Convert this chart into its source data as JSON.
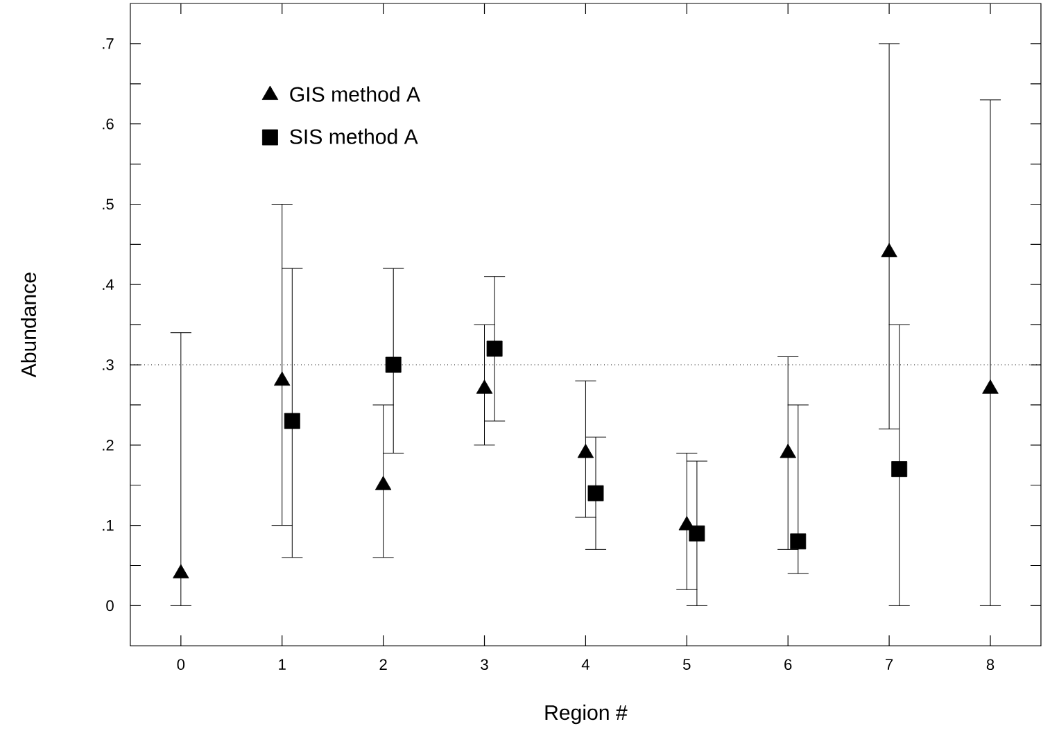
{
  "chart_data": {
    "type": "scatter",
    "xlabel": "Region #",
    "ylabel": "Abundance",
    "xlim": [
      -0.5,
      8.5
    ],
    "ylim": [
      -0.05,
      0.75
    ],
    "xticks": [
      0,
      1,
      2,
      3,
      4,
      5,
      6,
      7,
      8
    ],
    "yticks": [
      0,
      {
        "value": 0.1,
        "label": ".1"
      },
      {
        "value": 0.2,
        "label": ".2"
      },
      {
        "value": 0.3,
        "label": ".3"
      },
      {
        "value": 0.4,
        "label": ".4"
      },
      {
        "value": 0.5,
        "label": ".5"
      },
      {
        "value": 0.6,
        "label": ".6"
      },
      {
        "value": 0.7,
        "label": ".7"
      },
      {
        "value": 0.05,
        "label": null
      },
      {
        "value": 0.15,
        "label": null
      },
      {
        "value": 0.25,
        "label": null
      },
      {
        "value": 0.35,
        "label": null
      },
      {
        "value": 0.45,
        "label": null
      },
      {
        "value": 0.55,
        "label": null
      },
      {
        "value": 0.65,
        "label": null
      }
    ],
    "legend": "top left",
    "ref_lines": [
      {
        "axis": "y",
        "value": 0.3,
        "line_style": "dotted",
        "color": "#000000"
      }
    ],
    "series": [
      {
        "name": "GIS method A",
        "color": "#000000",
        "marker": "triangle",
        "x": [
          0,
          1,
          2,
          3,
          4,
          5,
          6,
          7,
          8
        ],
        "values": [
          0.04,
          0.28,
          0.15,
          0.27,
          0.19,
          0.1,
          0.19,
          0.44,
          0.27
        ],
        "errors": [
          [
            0,
            0.34
          ],
          [
            0.1,
            0.5
          ],
          [
            0.06,
            0.25
          ],
          [
            0.2,
            0.35
          ],
          [
            0.11,
            0.28
          ],
          [
            0.02,
            0.19
          ],
          [
            0.07,
            0.31
          ],
          [
            0.22,
            0.7
          ],
          [
            0,
            0.63
          ]
        ]
      },
      {
        "name": "SIS method A",
        "color": "#000000",
        "marker": "square",
        "x": [
          1.1,
          2.1,
          3.1,
          4.1,
          5.1,
          6.1,
          7.1
        ],
        "values": [
          0.23,
          0.3,
          0.32,
          0.14,
          0.09,
          0.08,
          0.17
        ],
        "errors": [
          [
            0.06,
            0.42
          ],
          [
            0.19,
            0.42
          ],
          [
            0.23,
            0.41
          ],
          [
            0.07,
            0.21
          ],
          [
            0,
            0.18
          ],
          [
            0.04,
            0.25
          ],
          [
            0,
            0.35
          ]
        ]
      }
    ]
  }
}
